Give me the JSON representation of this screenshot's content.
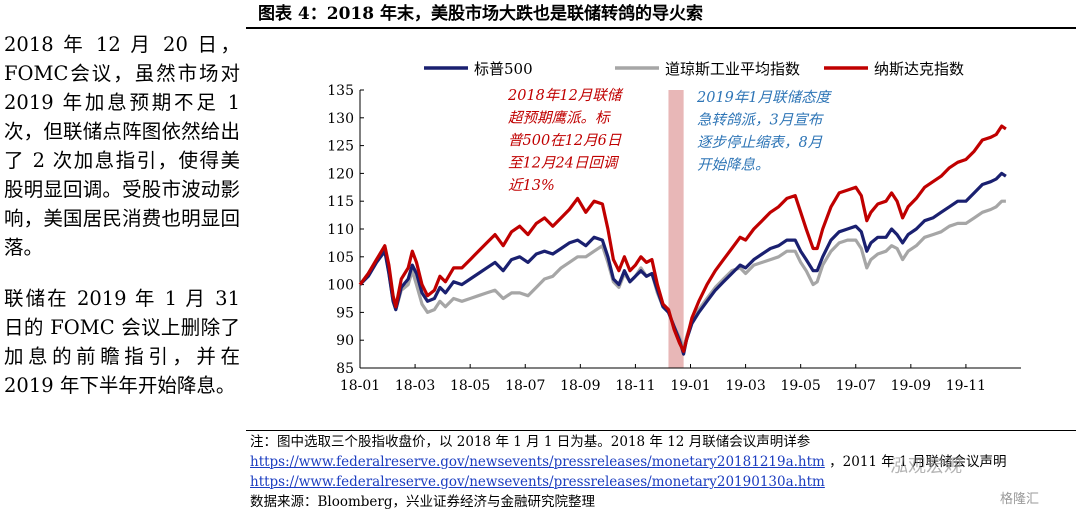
{
  "left_text": {
    "p1": "2018 年 12 月 20 日，FOMC会议，虽然市场对 2019 年加息预期不足 1 次，但联储点阵图依然给出了 2 次加息指引，使得美股明显回调。受股市波动影响，美国居民消费也明显回落。",
    "p2": "联储在 2019 年 1 月 31 日的 FOMC 会议上删除了加息的前瞻指引，并在 2019 年下半年开始降息。"
  },
  "figure": {
    "title": "图表 4：2018 年末，美股市场大跌也是联储转鸽的导火索"
  },
  "notes": {
    "line1": "注：图中选取三个股指收盘价，以 2018 年 1 月 1 日为基。2018 年 12 月联储会议声明详参",
    "link1": "https://www.federalreserve.gov/newsevents/pressreleases/monetary20181219a.htm",
    "line2_tail": "，2011 年 1 月联储会议声明",
    "link2": "https://www.federalreserve.gov/newsevents/pressreleases/monetary20190130a.htm",
    "source": "数据来源：Bloomberg，兴业证券经济与金融研究院整理"
  },
  "watermark": {
    "text": "泓观宏观",
    "logo": "格隆汇"
  },
  "chart_data": {
    "type": "line",
    "title": "图表 4：2018 年末，美股市场大跌也是联储转鸽的导火索",
    "xlabel": "",
    "ylabel": "",
    "ylim": [
      85,
      135
    ],
    "yticks": [
      85,
      90,
      95,
      100,
      105,
      110,
      115,
      120,
      125,
      130,
      135
    ],
    "xlim": [
      0,
      24
    ],
    "xtick_labels": [
      {
        "x": 0,
        "label": "18-01"
      },
      {
        "x": 2,
        "label": "18-03"
      },
      {
        "x": 4,
        "label": "18-05"
      },
      {
        "x": 6,
        "label": "18-07"
      },
      {
        "x": 8,
        "label": "18-09"
      },
      {
        "x": 10,
        "label": "18-11"
      },
      {
        "x": 12,
        "label": "19-01"
      },
      {
        "x": 14,
        "label": "19-03"
      },
      {
        "x": 16,
        "label": "19-05"
      },
      {
        "x": 18,
        "label": "19-07"
      },
      {
        "x": 20,
        "label": "19-09"
      },
      {
        "x": 22,
        "label": "19-11"
      }
    ],
    "grid": false,
    "legend_position": "top",
    "shaded_region": {
      "x": [
        11.2,
        11.75
      ],
      "color": "#e8b7b7"
    },
    "series": [
      {
        "name": "标普500",
        "color": "#1a2070",
        "points": [
          [
            0,
            100
          ],
          [
            0.3,
            101.5
          ],
          [
            0.6,
            104
          ],
          [
            0.9,
            106
          ],
          [
            1.05,
            102
          ],
          [
            1.2,
            97
          ],
          [
            1.3,
            95.5
          ],
          [
            1.5,
            99.5
          ],
          [
            1.75,
            101
          ],
          [
            1.9,
            103.5
          ],
          [
            2.05,
            102
          ],
          [
            2.25,
            98.5
          ],
          [
            2.45,
            97
          ],
          [
            2.7,
            97.5
          ],
          [
            2.9,
            99.5
          ],
          [
            3.1,
            98.5
          ],
          [
            3.4,
            100.5
          ],
          [
            3.7,
            100
          ],
          [
            4.0,
            101
          ],
          [
            4.3,
            102
          ],
          [
            4.6,
            103
          ],
          [
            4.9,
            104
          ],
          [
            5.2,
            102.5
          ],
          [
            5.5,
            104.5
          ],
          [
            5.8,
            105
          ],
          [
            6.1,
            104
          ],
          [
            6.4,
            105.5
          ],
          [
            6.7,
            106
          ],
          [
            7.0,
            105.5
          ],
          [
            7.3,
            106.5
          ],
          [
            7.6,
            107.5
          ],
          [
            7.9,
            108
          ],
          [
            8.2,
            107
          ],
          [
            8.5,
            108.5
          ],
          [
            8.8,
            108
          ],
          [
            9.0,
            105
          ],
          [
            9.2,
            101
          ],
          [
            9.4,
            100
          ],
          [
            9.6,
            102.5
          ],
          [
            9.8,
            100.5
          ],
          [
            10.0,
            101.5
          ],
          [
            10.2,
            102.5
          ],
          [
            10.4,
            101.5
          ],
          [
            10.6,
            102
          ],
          [
            10.8,
            99
          ],
          [
            11.0,
            96
          ],
          [
            11.2,
            95
          ],
          [
            11.4,
            92.5
          ],
          [
            11.6,
            90
          ],
          [
            11.75,
            87.5
          ],
          [
            11.85,
            90
          ],
          [
            12.05,
            93
          ],
          [
            12.3,
            95
          ],
          [
            12.6,
            97
          ],
          [
            12.9,
            99
          ],
          [
            13.2,
            100.5
          ],
          [
            13.5,
            102
          ],
          [
            13.8,
            103.5
          ],
          [
            14.0,
            103
          ],
          [
            14.3,
            104.5
          ],
          [
            14.6,
            105.5
          ],
          [
            14.9,
            106.5
          ],
          [
            15.2,
            107
          ],
          [
            15.5,
            108
          ],
          [
            15.8,
            108
          ],
          [
            16.0,
            106
          ],
          [
            16.2,
            104.5
          ],
          [
            16.45,
            102.5
          ],
          [
            16.6,
            102.5
          ],
          [
            16.8,
            105
          ],
          [
            17.1,
            108
          ],
          [
            17.4,
            109.5
          ],
          [
            17.7,
            110
          ],
          [
            18.0,
            110.5
          ],
          [
            18.2,
            109.5
          ],
          [
            18.4,
            106
          ],
          [
            18.55,
            107.5
          ],
          [
            18.8,
            108.5
          ],
          [
            19.1,
            108.5
          ],
          [
            19.3,
            110
          ],
          [
            19.5,
            109
          ],
          [
            19.7,
            107.5
          ],
          [
            19.9,
            109
          ],
          [
            20.2,
            110
          ],
          [
            20.5,
            111.5
          ],
          [
            20.8,
            112
          ],
          [
            21.1,
            113
          ],
          [
            21.4,
            114
          ],
          [
            21.7,
            115
          ],
          [
            22.0,
            115
          ],
          [
            22.3,
            116.5
          ],
          [
            22.6,
            118
          ],
          [
            22.9,
            118.5
          ],
          [
            23.1,
            119
          ],
          [
            23.3,
            120
          ],
          [
            23.45,
            119.5
          ]
        ]
      },
      {
        "name": "道琼斯工业平均指数",
        "color": "#a6a6a6",
        "points": [
          [
            0,
            100
          ],
          [
            0.3,
            102
          ],
          [
            0.6,
            104.5
          ],
          [
            0.9,
            106.5
          ],
          [
            1.05,
            102
          ],
          [
            1.2,
            97
          ],
          [
            1.3,
            95.5
          ],
          [
            1.5,
            99
          ],
          [
            1.75,
            100
          ],
          [
            1.9,
            102.5
          ],
          [
            2.05,
            100
          ],
          [
            2.25,
            96.5
          ],
          [
            2.45,
            95
          ],
          [
            2.7,
            95.5
          ],
          [
            2.9,
            97
          ],
          [
            3.1,
            96
          ],
          [
            3.4,
            97.5
          ],
          [
            3.7,
            97
          ],
          [
            4.0,
            97.5
          ],
          [
            4.3,
            98
          ],
          [
            4.6,
            98.5
          ],
          [
            4.9,
            99
          ],
          [
            5.2,
            97.5
          ],
          [
            5.5,
            98.5
          ],
          [
            5.8,
            98.5
          ],
          [
            6.1,
            98
          ],
          [
            6.4,
            99.5
          ],
          [
            6.7,
            101
          ],
          [
            7.0,
            101.5
          ],
          [
            7.3,
            103
          ],
          [
            7.6,
            104
          ],
          [
            7.9,
            105
          ],
          [
            8.2,
            105
          ],
          [
            8.5,
            106
          ],
          [
            8.8,
            107
          ],
          [
            9.0,
            104
          ],
          [
            9.2,
            100.5
          ],
          [
            9.4,
            99.5
          ],
          [
            9.6,
            102
          ],
          [
            9.8,
            100.5
          ],
          [
            10.0,
            101.5
          ],
          [
            10.2,
            103
          ],
          [
            10.4,
            101.5
          ],
          [
            10.6,
            102
          ],
          [
            10.8,
            98.5
          ],
          [
            11.0,
            96
          ],
          [
            11.2,
            95
          ],
          [
            11.4,
            92.5
          ],
          [
            11.6,
            90.5
          ],
          [
            11.75,
            88.5
          ],
          [
            11.85,
            90.5
          ],
          [
            12.05,
            93.5
          ],
          [
            12.3,
            95.5
          ],
          [
            12.6,
            97.5
          ],
          [
            12.9,
            99.5
          ],
          [
            13.2,
            101
          ],
          [
            13.5,
            102.5
          ],
          [
            13.8,
            103
          ],
          [
            14.0,
            102
          ],
          [
            14.3,
            103.5
          ],
          [
            14.6,
            104
          ],
          [
            14.9,
            104.5
          ],
          [
            15.2,
            105
          ],
          [
            15.5,
            106
          ],
          [
            15.8,
            106
          ],
          [
            16.0,
            104
          ],
          [
            16.2,
            102.5
          ],
          [
            16.45,
            100
          ],
          [
            16.6,
            100.5
          ],
          [
            16.8,
            103.5
          ],
          [
            17.1,
            106
          ],
          [
            17.4,
            107.5
          ],
          [
            17.7,
            108
          ],
          [
            18.0,
            108
          ],
          [
            18.2,
            106.5
          ],
          [
            18.4,
            103
          ],
          [
            18.55,
            104.5
          ],
          [
            18.8,
            105.5
          ],
          [
            19.1,
            106
          ],
          [
            19.3,
            107
          ],
          [
            19.5,
            106.5
          ],
          [
            19.7,
            104.5
          ],
          [
            19.9,
            106
          ],
          [
            20.2,
            107
          ],
          [
            20.5,
            108.5
          ],
          [
            20.8,
            109
          ],
          [
            21.1,
            109.5
          ],
          [
            21.4,
            110.5
          ],
          [
            21.7,
            111
          ],
          [
            22.0,
            111
          ],
          [
            22.3,
            112
          ],
          [
            22.6,
            113
          ],
          [
            22.9,
            113.5
          ],
          [
            23.1,
            114
          ],
          [
            23.3,
            115
          ],
          [
            23.45,
            115
          ]
        ]
      },
      {
        "name": "纳斯达克指数",
        "color": "#c00000",
        "points": [
          [
            0,
            100
          ],
          [
            0.3,
            102
          ],
          [
            0.6,
            104.5
          ],
          [
            0.9,
            107
          ],
          [
            1.05,
            103.5
          ],
          [
            1.2,
            98
          ],
          [
            1.3,
            96
          ],
          [
            1.5,
            101
          ],
          [
            1.75,
            103
          ],
          [
            1.9,
            106
          ],
          [
            2.05,
            104
          ],
          [
            2.25,
            100
          ],
          [
            2.45,
            98
          ],
          [
            2.7,
            99
          ],
          [
            2.9,
            101.5
          ],
          [
            3.1,
            100.5
          ],
          [
            3.4,
            103
          ],
          [
            3.7,
            103
          ],
          [
            4.0,
            104.5
          ],
          [
            4.3,
            106
          ],
          [
            4.6,
            107.5
          ],
          [
            4.9,
            109
          ],
          [
            5.2,
            107
          ],
          [
            5.5,
            109.5
          ],
          [
            5.8,
            110.5
          ],
          [
            6.1,
            109
          ],
          [
            6.4,
            111
          ],
          [
            6.7,
            112
          ],
          [
            7.0,
            110.5
          ],
          [
            7.3,
            112
          ],
          [
            7.6,
            113.5
          ],
          [
            7.9,
            115.5
          ],
          [
            8.2,
            113
          ],
          [
            8.5,
            115
          ],
          [
            8.8,
            114.5
          ],
          [
            9.0,
            110
          ],
          [
            9.2,
            104.5
          ],
          [
            9.4,
            102.5
          ],
          [
            9.6,
            105
          ],
          [
            9.8,
            102.5
          ],
          [
            10.0,
            103.5
          ],
          [
            10.2,
            105
          ],
          [
            10.4,
            104
          ],
          [
            10.6,
            104.5
          ],
          [
            10.8,
            100
          ],
          [
            11.0,
            96.5
          ],
          [
            11.2,
            95.5
          ],
          [
            11.4,
            92
          ],
          [
            11.6,
            89.5
          ],
          [
            11.75,
            88
          ],
          [
            11.85,
            90
          ],
          [
            12.05,
            94
          ],
          [
            12.3,
            97
          ],
          [
            12.6,
            100
          ],
          [
            12.9,
            102.5
          ],
          [
            13.2,
            104.5
          ],
          [
            13.5,
            106.5
          ],
          [
            13.8,
            108.5
          ],
          [
            14.0,
            108
          ],
          [
            14.3,
            110
          ],
          [
            14.6,
            111.5
          ],
          [
            14.9,
            113
          ],
          [
            15.2,
            114
          ],
          [
            15.5,
            115.5
          ],
          [
            15.8,
            116
          ],
          [
            16.0,
            113
          ],
          [
            16.2,
            110
          ],
          [
            16.45,
            106.5
          ],
          [
            16.6,
            106.5
          ],
          [
            16.8,
            110
          ],
          [
            17.1,
            114
          ],
          [
            17.4,
            116.5
          ],
          [
            17.7,
            117
          ],
          [
            18.0,
            117.5
          ],
          [
            18.2,
            116
          ],
          [
            18.4,
            111.5
          ],
          [
            18.55,
            113
          ],
          [
            18.8,
            114.5
          ],
          [
            19.1,
            115
          ],
          [
            19.3,
            116.5
          ],
          [
            19.5,
            115
          ],
          [
            19.7,
            112
          ],
          [
            19.9,
            114
          ],
          [
            20.2,
            115.5
          ],
          [
            20.5,
            117.5
          ],
          [
            20.8,
            118.5
          ],
          [
            21.1,
            119.5
          ],
          [
            21.4,
            121
          ],
          [
            21.7,
            122
          ],
          [
            22.0,
            122.5
          ],
          [
            22.3,
            124
          ],
          [
            22.6,
            126
          ],
          [
            22.9,
            126.5
          ],
          [
            23.1,
            127
          ],
          [
            23.3,
            128.5
          ],
          [
            23.45,
            128
          ]
        ]
      }
    ],
    "annotations": [
      {
        "id": "a1",
        "color": "#c00000",
        "lines": [
          "2018年12月联储",
          "超预期鹰派。标",
          "普500在12月6日",
          "至12月24日回调",
          "近13%"
        ]
      },
      {
        "id": "a2",
        "color": "#2e75b6",
        "lines": [
          "2019年1月联储态度",
          "急转鸽派，3月宣布",
          "逐步停止缩表，8月",
          "开始降息。"
        ]
      }
    ]
  }
}
